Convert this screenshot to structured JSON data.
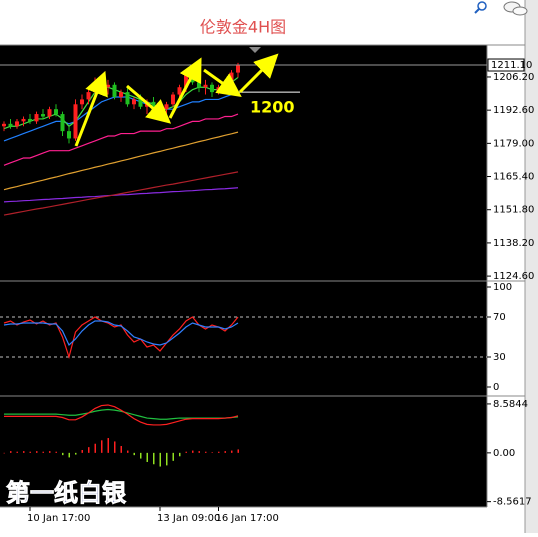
{
  "chart_data": [
    {
      "type": "candlestick",
      "title": "伦敦金4H图",
      "categories": [
        null,
        null,
        null,
        null,
        "10 Jan 17:00",
        null,
        null,
        null,
        null,
        null,
        null,
        null,
        null,
        null,
        null,
        null,
        null,
        null,
        null,
        null,
        null,
        null,
        null,
        null,
        "13 Jan 09:00",
        null,
        null,
        null,
        null,
        null,
        null,
        null,
        null,
        "16 Jan 17:00",
        null,
        null,
        null
      ],
      "ohlc": [
        [
          1186,
          1188,
          1184,
          1187
        ],
        [
          1187,
          1189,
          1185,
          1186
        ],
        [
          1186,
          1189,
          1185,
          1188
        ],
        [
          1188,
          1190,
          1186,
          1189
        ],
        [
          1189,
          1191,
          1187,
          1188
        ],
        [
          1188,
          1192,
          1187,
          1191
        ],
        [
          1191,
          1193,
          1189,
          1190
        ],
        [
          1190,
          1194,
          1189,
          1193
        ],
        [
          1193,
          1195,
          1190,
          1191
        ],
        [
          1191,
          1192,
          1182,
          1184
        ],
        [
          1184,
          1186,
          1179,
          1181
        ],
        [
          1181,
          1197,
          1180,
          1195
        ],
        [
          1195,
          1199,
          1193,
          1197
        ],
        [
          1197,
          1201,
          1195,
          1200
        ],
        [
          1200,
          1206,
          1198,
          1204
        ],
        [
          1204,
          1206,
          1200,
          1202
        ],
        [
          1202,
          1205,
          1199,
          1203
        ],
        [
          1203,
          1204,
          1197,
          1198
        ],
        [
          1198,
          1201,
          1196,
          1200
        ],
        [
          1200,
          1202,
          1194,
          1195
        ],
        [
          1195,
          1198,
          1193,
          1197
        ],
        [
          1197,
          1199,
          1193,
          1194
        ],
        [
          1194,
          1197,
          1191,
          1196
        ],
        [
          1196,
          1198,
          1190,
          1191
        ],
        [
          1191,
          1194,
          1189,
          1193
        ],
        [
          1193,
          1196,
          1191,
          1195
        ],
        [
          1195,
          1200,
          1194,
          1199
        ],
        [
          1199,
          1203,
          1197,
          1202
        ],
        [
          1202,
          1208,
          1200,
          1207
        ],
        [
          1207,
          1209,
          1203,
          1204
        ],
        [
          1204,
          1206,
          1200,
          1202
        ],
        [
          1202,
          1205,
          1199,
          1203
        ],
        [
          1203,
          1204,
          1198,
          1200
        ],
        [
          1200,
          1203,
          1199,
          1202
        ],
        [
          1202,
          1205,
          1200,
          1204
        ],
        [
          1204,
          1209,
          1203,
          1208
        ],
        [
          1208,
          1212,
          1206,
          1211
        ]
      ],
      "up_color": "#ff2020",
      "down_color": "#20c020",
      "series": [
        {
          "color": "#8a2be2",
          "values": [
            1155.0,
            1155.2,
            1155.3,
            1155.5,
            1155.6,
            1155.8,
            1156.0,
            1156.1,
            1156.3,
            1156.4,
            1156.6,
            1156.8,
            1156.9,
            1157.1,
            1157.2,
            1157.4,
            1157.6,
            1157.7,
            1157.9,
            1158.0,
            1158.2,
            1158.4,
            1158.5,
            1158.7,
            1158.8,
            1159.0,
            1159.2,
            1159.3,
            1159.5,
            1159.6,
            1159.8,
            1160.0,
            1160.1,
            1160.3,
            1160.4,
            1160.6,
            1160.8
          ]
        },
        {
          "color": "#b0202a",
          "values": [
            1149.6,
            1150.1,
            1150.6,
            1151.1,
            1151.6,
            1152.1,
            1152.5,
            1153.0,
            1153.5,
            1154.0,
            1154.5,
            1155.0,
            1155.5,
            1156.0,
            1156.5,
            1157.0,
            1157.4,
            1157.9,
            1158.4,
            1158.9,
            1159.4,
            1159.9,
            1160.4,
            1160.9,
            1161.4,
            1161.9,
            1162.3,
            1162.8,
            1163.3,
            1163.8,
            1164.3,
            1164.8,
            1165.3,
            1165.8,
            1166.3,
            1166.8,
            1167.3
          ]
        },
        {
          "color": "#e0a030",
          "values": [
            1160.0,
            1160.7,
            1161.3,
            1162.0,
            1162.6,
            1163.3,
            1163.9,
            1164.6,
            1165.2,
            1165.9,
            1166.6,
            1167.2,
            1167.9,
            1168.5,
            1169.2,
            1169.8,
            1170.5,
            1171.1,
            1171.8,
            1172.4,
            1173.1,
            1173.8,
            1174.4,
            1175.1,
            1175.7,
            1176.4,
            1177.0,
            1177.7,
            1178.3,
            1179.0,
            1179.7,
            1180.3,
            1181.0,
            1181.6,
            1182.3,
            1182.9,
            1183.6
          ]
        },
        {
          "color": "#ff2090",
          "values": [
            1170,
            1171,
            1172,
            1173,
            1173,
            1174,
            1175,
            1176,
            1176,
            1176,
            1176,
            1177,
            1178,
            1179,
            1180,
            1181,
            1182,
            1182,
            1183,
            1183,
            1183,
            1184,
            1184,
            1184,
            1184,
            1185,
            1185,
            1186,
            1187,
            1188,
            1188,
            1189,
            1189,
            1189,
            1190,
            1190,
            1191
          ]
        },
        {
          "color": "#2080ff",
          "values": [
            1180,
            1181,
            1182,
            1183,
            1184,
            1185,
            1186,
            1187,
            1188,
            1188,
            1187,
            1188,
            1190,
            1192,
            1194,
            1196,
            1197,
            1198,
            1198,
            1198,
            1197,
            1196,
            1195,
            1194,
            1193,
            1193,
            1193,
            1194,
            1195,
            1196,
            1196,
            1197,
            1197,
            1197,
            1198,
            1199,
            1200
          ]
        },
        {
          "color": "#40e040",
          "values": [
            1185,
            1186,
            1186,
            1187,
            1188,
            1189,
            1189,
            1190,
            1191,
            1189,
            1186,
            1188,
            1192,
            1196,
            1200,
            1202,
            1202,
            1201,
            1200,
            1199,
            1198,
            1197,
            1196,
            1195,
            1193,
            1193,
            1194,
            1196,
            1199,
            1201,
            1202,
            1202,
            1201,
            1201,
            1202,
            1204,
            1206
          ]
        }
      ],
      "ylim": [
        1123,
        1219.3
      ],
      "yticks": [
        {
          "value": 1206.2,
          "label": "1206.20"
        },
        {
          "value": 1192.6,
          "label": "1192.60"
        },
        {
          "value": 1179,
          "label": "1179.00"
        },
        {
          "value": 1165.4,
          "label": "1165.40"
        },
        {
          "value": 1151.8,
          "label": "1151.80"
        },
        {
          "value": 1138.2,
          "label": "1138.20"
        },
        {
          "value": 1124.6,
          "label": "1124.60"
        }
      ],
      "last_price": {
        "value": 1211.1,
        "label": "1211.10"
      },
      "hline": 1200,
      "watermark": "第一纸白银"
    },
    {
      "type": "line",
      "series": [
        {
          "color": "#ff2020",
          "values": [
            64,
            66,
            62,
            65,
            67,
            63,
            66,
            62,
            64,
            50,
            30,
            55,
            62,
            66,
            70,
            66,
            64,
            60,
            62,
            52,
            45,
            48,
            40,
            42,
            36,
            44,
            52,
            58,
            66,
            70,
            62,
            58,
            62,
            60,
            56,
            62,
            70
          ]
        },
        {
          "color": "#3080ff",
          "values": [
            62,
            63,
            63,
            64,
            64,
            64,
            64,
            63,
            63,
            56,
            42,
            48,
            56,
            62,
            66,
            66,
            65,
            62,
            61,
            56,
            50,
            48,
            45,
            43,
            42,
            44,
            49,
            54,
            60,
            64,
            62,
            60,
            60,
            60,
            58,
            60,
            64
          ]
        }
      ],
      "ylim": [
        -8,
        105
      ],
      "yticks": [
        100,
        70,
        30,
        0
      ],
      "levels": [
        70,
        30
      ]
    },
    {
      "type": "macd",
      "histogram": [
        0,
        0.3,
        0.2,
        0.3,
        0.2,
        0.3,
        0.2,
        0.3,
        0.2,
        -0.4,
        -0.8,
        -0.3,
        0.5,
        1.0,
        1.6,
        2.2,
        2.6,
        2.0,
        1.2,
        0.4,
        -0.4,
        -1.0,
        -1.6,
        -2.0,
        -2.4,
        -2.2,
        -1.4,
        -0.6,
        0.2,
        0.4,
        0.3,
        0.2,
        0.1,
        0.2,
        0.3,
        0.4,
        0.6
      ],
      "up_color": "#ff2020",
      "down_color": "#90e020",
      "series": [
        {
          "color": "#20c040",
          "values": [
            6.8,
            6.8,
            6.8,
            6.8,
            6.8,
            6.8,
            6.8,
            6.8,
            6.8,
            6.7,
            6.6,
            6.6,
            6.8,
            7.0,
            7.3,
            7.5,
            7.6,
            7.5,
            7.3,
            7.0,
            6.7,
            6.4,
            6.1,
            6.0,
            5.9,
            5.9,
            6.0,
            6.1,
            6.1,
            6.1,
            6.1,
            6.1,
            6.1,
            6.1,
            6.1,
            6.2,
            6.3
          ]
        },
        {
          "color": "#ff2020",
          "values": [
            6.4,
            6.4,
            6.4,
            6.4,
            6.4,
            6.4,
            6.4,
            6.4,
            6.4,
            6.2,
            5.8,
            5.8,
            6.3,
            7.0,
            7.8,
            8.3,
            8.4,
            8.1,
            7.5,
            6.8,
            6.0,
            5.4,
            5.0,
            4.9,
            4.9,
            5.0,
            5.3,
            5.6,
            5.9,
            6.0,
            6.0,
            6.0,
            6.0,
            6.0,
            6.1,
            6.2,
            6.5
          ]
        }
      ],
      "ylim": [
        -9.5,
        9.8
      ],
      "yticks": [
        8.5844,
        {
          "value": 0,
          "label": "0.00"
        },
        -8.5617
      ]
    }
  ]
}
